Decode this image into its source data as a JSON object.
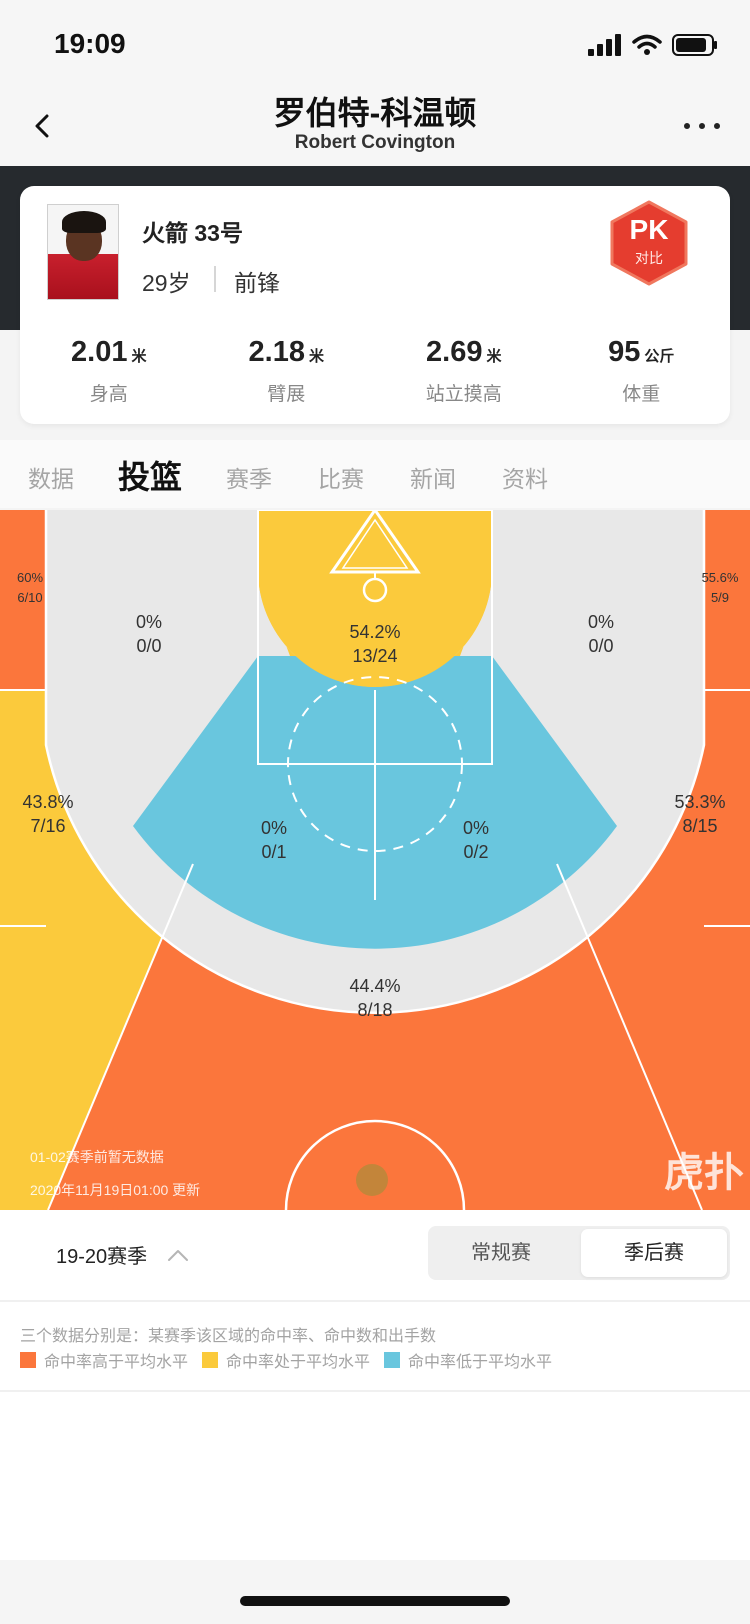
{
  "status_bar": {
    "time": "19:09"
  },
  "header": {
    "title_cn": "罗伯特-科温顿",
    "title_en": "Robert Covington"
  },
  "player": {
    "team_number": "火箭 33号",
    "age": "29岁",
    "position": "前锋"
  },
  "pk": {
    "label": "PK",
    "sub": "对比"
  },
  "stats": [
    {
      "value": "2.01",
      "unit": "米",
      "label": "身高"
    },
    {
      "value": "2.18",
      "unit": "米",
      "label": "臂展"
    },
    {
      "value": "2.69",
      "unit": "米",
      "label": "站立摸高"
    },
    {
      "value": "95",
      "unit": "公斤",
      "label": "体重"
    }
  ],
  "tabs": [
    "数据",
    "投篮",
    "赛季",
    "比赛",
    "新闻",
    "资料"
  ],
  "active_tab": "投篮",
  "zones": {
    "left_corner": {
      "pct": "60%",
      "made": "6/10"
    },
    "right_corner": {
      "pct": "55.6%",
      "made": "5/9"
    },
    "left_mid": {
      "pct": "0%",
      "made": "0/0"
    },
    "right_mid": {
      "pct": "0%",
      "made": "0/0"
    },
    "restricted": {
      "pct": "54.2%",
      "made": "13/24"
    },
    "left_wing_three": {
      "pct": "43.8%",
      "made": "7/16"
    },
    "right_wing_three": {
      "pct": "53.3%",
      "made": "8/15"
    },
    "paint_left": {
      "pct": "0%",
      "made": "0/1"
    },
    "paint_right": {
      "pct": "0%",
      "made": "0/2"
    },
    "top_three": {
      "pct": "44.4%",
      "made": "8/18"
    }
  },
  "court_notes": {
    "line1": "01-02赛季前暂无数据",
    "line2": "2020年11月19日01:00 更新"
  },
  "watermark": "虎扑",
  "season": {
    "label": "19-20赛季"
  },
  "segments": [
    "常规赛",
    "季后赛"
  ],
  "active_segment": "季后赛",
  "legend": {
    "description": "三个数据分别是：某赛季该区域的命中率、命中数和出手数",
    "items": [
      {
        "label": "命中率高于平均水平",
        "color": "#fb763c"
      },
      {
        "label": "命中率处于平均水平",
        "color": "#fbca3c"
      },
      {
        "label": "命中率低于平均水平",
        "color": "#69c6de"
      }
    ]
  },
  "colors": {
    "above": "#fb763c",
    "average": "#fbca3c",
    "below": "#69c6de",
    "neutral": "#e8e8e8",
    "pk": "#e53d2f"
  }
}
